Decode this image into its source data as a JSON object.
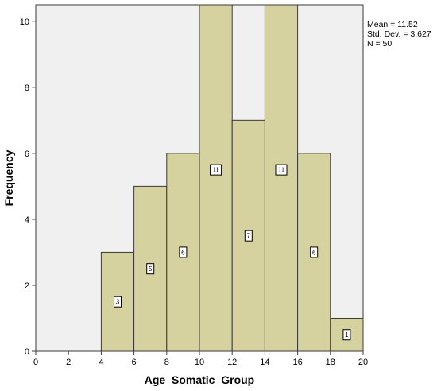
{
  "chart_data": {
    "type": "bar",
    "subtype": "histogram",
    "xlabel": "Age_Somatic_Group",
    "ylabel": "Frequency",
    "xlim": [
      0,
      20
    ],
    "ylim": [
      0,
      10.5
    ],
    "xticks": [
      0,
      2,
      4,
      6,
      8,
      10,
      12,
      14,
      16,
      18,
      20
    ],
    "yticks": [
      0,
      2,
      4,
      6,
      8,
      10
    ],
    "bins": [
      {
        "start": 4,
        "end": 6,
        "value": 3,
        "label": "3"
      },
      {
        "start": 6,
        "end": 8,
        "value": 5,
        "label": "5"
      },
      {
        "start": 8,
        "end": 10,
        "value": 6,
        "label": "6"
      },
      {
        "start": 10,
        "end": 12,
        "value": 11,
        "label": "11"
      },
      {
        "start": 12,
        "end": 14,
        "value": 7,
        "label": "7"
      },
      {
        "start": 14,
        "end": 16,
        "value": 11,
        "label": "11"
      },
      {
        "start": 16,
        "end": 18,
        "value": 6,
        "label": "6"
      },
      {
        "start": 18,
        "end": 20,
        "value": 1,
        "label": "1"
      }
    ],
    "stats": {
      "mean": "Mean = 11.52",
      "std_dev": "Std. Dev. = 3.627",
      "n": "N = 50"
    },
    "colors": {
      "bar_fill": "#d6d2a0",
      "bar_stroke": "#3a3a3a",
      "plot_background": "#f0f0f0"
    },
    "grid": false,
    "legend": "none"
  }
}
